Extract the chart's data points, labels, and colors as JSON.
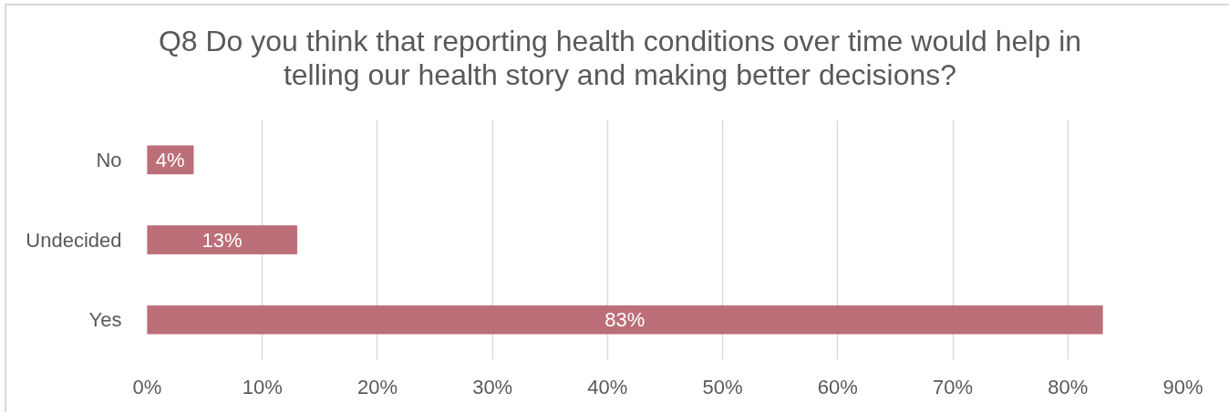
{
  "chart_data": {
    "type": "bar",
    "orientation": "horizontal",
    "title": "Q8 Do you think that reporting health conditions over time would help in telling our health story and making better decisions?",
    "categories": [
      "No",
      "Undecided",
      "Yes"
    ],
    "values": [
      4,
      13,
      83
    ],
    "value_labels": [
      "4%",
      "13%",
      "83%"
    ],
    "color": "#bc6f78",
    "xlim": [
      0,
      90
    ],
    "xticks": [
      {
        "value": 0,
        "label": "0%"
      },
      {
        "value": 10,
        "label": "10%"
      },
      {
        "value": 20,
        "label": "20%"
      },
      {
        "value": 30,
        "label": "30%"
      },
      {
        "value": 40,
        "label": "40%"
      },
      {
        "value": 50,
        "label": "50%"
      },
      {
        "value": 60,
        "label": "60%"
      },
      {
        "value": 70,
        "label": "70%"
      },
      {
        "value": 80,
        "label": "80%"
      },
      {
        "value": 90,
        "label": "90%"
      }
    ],
    "grid": "x"
  }
}
